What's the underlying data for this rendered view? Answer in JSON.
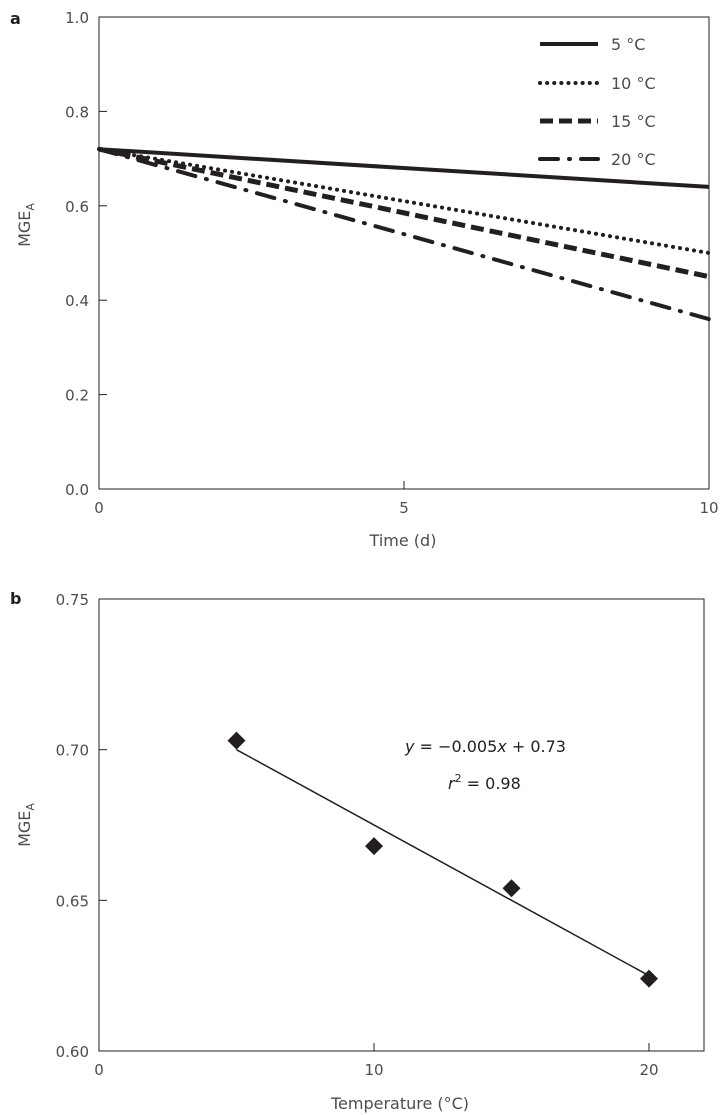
{
  "chart_data": [
    {
      "panel": "a",
      "type": "line",
      "title": "",
      "xlabel": "Time (d)",
      "ylabel_main": "MGE",
      "ylabel_sub": "A",
      "xlim": [
        0,
        10
      ],
      "ylim": [
        0,
        1.0
      ],
      "xticks": [
        0,
        5,
        10
      ],
      "xtick_labels": [
        "0",
        "5",
        "10"
      ],
      "yticks": [
        0,
        0.2,
        0.4,
        0.6,
        0.8,
        1.0
      ],
      "ytick_labels": [
        "0.0",
        "0.2",
        "0.4",
        "0.6",
        "0.8",
        "1.0"
      ],
      "legend_position": "top-right",
      "series": [
        {
          "name": "5 °C",
          "style": "solid",
          "x": [
            0,
            10
          ],
          "y": [
            0.72,
            0.64
          ]
        },
        {
          "name": "10 °C",
          "style": "dotted",
          "x": [
            0,
            10
          ],
          "y": [
            0.72,
            0.5
          ]
        },
        {
          "name": "15 °C",
          "style": "dashed",
          "x": [
            0,
            10
          ],
          "y": [
            0.72,
            0.45
          ]
        },
        {
          "name": "20 °C",
          "style": "dashdot",
          "x": [
            0,
            10
          ],
          "y": [
            0.72,
            0.36
          ]
        }
      ]
    },
    {
      "panel": "b",
      "type": "scatter",
      "title": "",
      "xlabel": "Temperature (°C)",
      "ylabel_main": "MGE",
      "ylabel_sub": "A",
      "xlim": [
        0,
        22
      ],
      "ylim": [
        0.6,
        0.75
      ],
      "xticks": [
        0,
        10,
        20
      ],
      "xtick_labels": [
        "0",
        "10",
        "20"
      ],
      "yticks": [
        0.6,
        0.65,
        0.7,
        0.75
      ],
      "ytick_labels": [
        "0.60",
        "0.65",
        "0.70",
        "0.75"
      ],
      "points": {
        "x": [
          5,
          10,
          15,
          20
        ],
        "y": [
          0.703,
          0.668,
          0.654,
          0.624
        ]
      },
      "fit": {
        "x": [
          5,
          20
        ],
        "y": [
          0.7,
          0.625
        ]
      },
      "annotation": {
        "eq_y": "y",
        "eq_rest": " = −0.005",
        "eq_x": "x",
        "eq_tail": " + 0.73",
        "r_sym": "r",
        "r_exp": "2",
        "r_tail": " = 0.98"
      }
    }
  ]
}
